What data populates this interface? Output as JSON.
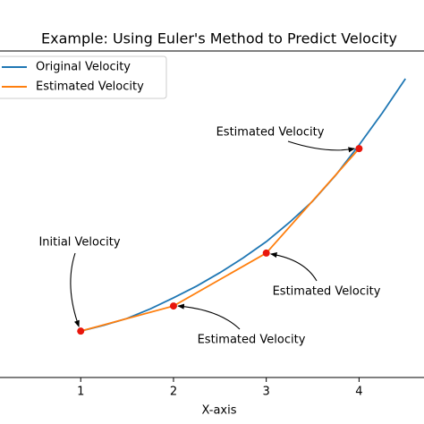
{
  "chart_data": {
    "type": "line",
    "title": "Example: Using Euler's Method to Predict Velocity",
    "x_label": "X-axis",
    "xlim": [
      0.13,
      4.7
    ],
    "ylim": [
      0,
      100
    ],
    "xticks": [
      1,
      2,
      3,
      4
    ],
    "legend": "upper left",
    "series": [
      {
        "name": "Original Velocity",
        "color": "#1f77b4",
        "x": [
          1,
          1.25,
          1.5,
          1.75,
          2,
          2.25,
          2.5,
          2.75,
          3,
          3.25,
          3.5,
          3.75,
          4,
          4.25,
          4.5
        ],
        "values": [
          14.2,
          16.0,
          18.1,
          21.0,
          24.4,
          28.0,
          32.1,
          36.6,
          41.6,
          47.5,
          54.0,
          62.0,
          71.2,
          81.0,
          91.5
        ]
      },
      {
        "name": "Estimated Velocity",
        "color": "#ff7f0e",
        "marker_color": "#e8160c",
        "x": [
          1,
          2,
          3,
          4
        ],
        "values": [
          14.2,
          21.9,
          38.1,
          70.1
        ]
      }
    ],
    "annotations": [
      {
        "text": "Initial Velocity",
        "series": 1,
        "point": 0
      },
      {
        "text": "Estimated Velocity",
        "series": 1,
        "point": 3
      },
      {
        "text": "Estimated Velocity",
        "series": 1,
        "point": 2
      },
      {
        "text": "Estimated Velocity",
        "series": 1,
        "point": 1
      }
    ]
  }
}
